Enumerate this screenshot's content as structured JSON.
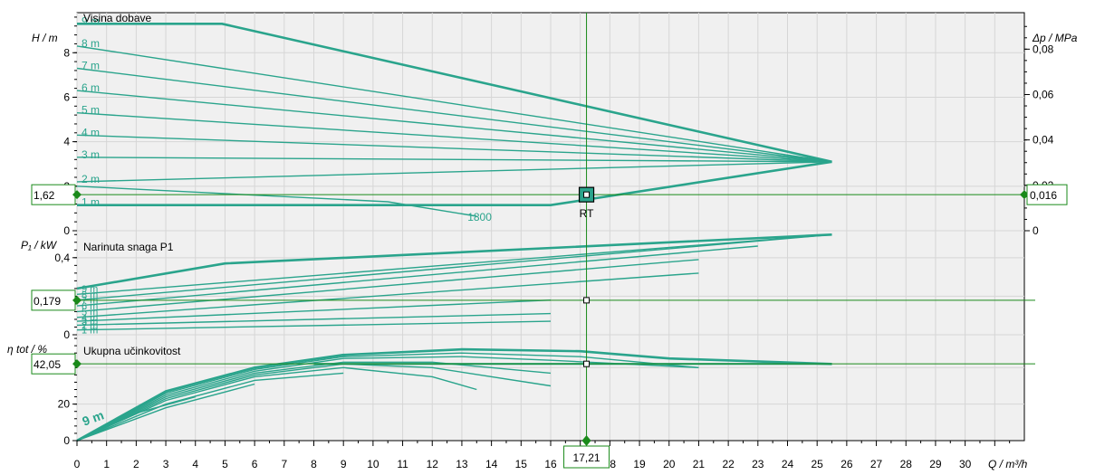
{
  "colors": {
    "curve": "#2aa48c",
    "label": "#2aa48c",
    "marker": "#1a8a1a",
    "grid": "#d6d6d6",
    "panel": "#f0f0f0",
    "axis": "#000000"
  },
  "chart_data": [
    {
      "type": "line",
      "title": "Visina dobave",
      "ylabel": "H / m",
      "ylabel_right": "Δp / MPa",
      "xlim": [
        0,
        32
      ],
      "ylim": [
        0,
        9.8
      ],
      "y_ticks": [
        0,
        2,
        4,
        6,
        8
      ],
      "y_right_ticks": [
        {
          "label": "0",
          "h": 0
        },
        {
          "label": "0,02",
          "h": 2.04
        },
        {
          "label": "0,04",
          "h": 4.08
        },
        {
          "label": "0,06",
          "h": 6.12
        },
        {
          "label": "0,08",
          "h": 8.16
        }
      ],
      "grid": true,
      "series": [
        {
          "name": "9 m",
          "x": [
            0,
            4.9,
            25.5
          ],
          "y": [
            9.3,
            9.3,
            3.1
          ]
        },
        {
          "name": "8 m",
          "x": [
            0,
            25.5
          ],
          "y": [
            8.3,
            3.1
          ]
        },
        {
          "name": "7 m",
          "x": [
            0,
            25.5
          ],
          "y": [
            7.3,
            3.1
          ]
        },
        {
          "name": "6 m",
          "x": [
            0,
            25.5
          ],
          "y": [
            6.3,
            3.1
          ]
        },
        {
          "name": "5 m",
          "x": [
            0,
            25.5
          ],
          "y": [
            5.3,
            3.1
          ]
        },
        {
          "name": "4 m",
          "x": [
            0,
            25.5
          ],
          "y": [
            4.3,
            3.1
          ]
        },
        {
          "name": "3 m",
          "x": [
            0,
            25.5
          ],
          "y": [
            3.3,
            3.1
          ]
        },
        {
          "name": "2 m",
          "x": [
            0,
            25.5
          ],
          "y": [
            2.2,
            3.1
          ]
        },
        {
          "name": "1 m",
          "x": [
            0,
            16,
            25.5
          ],
          "y": [
            1.15,
            1.15,
            3.1
          ]
        },
        {
          "name": "1800",
          "x": [
            0,
            10.5,
            13.5
          ],
          "y": [
            2.0,
            1.3,
            0.65
          ]
        }
      ],
      "operating_point": {
        "label": "RT",
        "x": 17.21,
        "y": 1.62,
        "y_label": "1,62",
        "y_right_label": "0,016"
      }
    },
    {
      "type": "line",
      "title": "Narinuta snaga P1",
      "ylabel": "P₁ / kW",
      "xlim": [
        0,
        32
      ],
      "ylim": [
        0,
        0.54
      ],
      "y_ticks": [
        0,
        0.2,
        0.4
      ],
      "y_tick_labels": [
        "0",
        "",
        "0,4"
      ],
      "grid": true,
      "series": [
        {
          "name": "9 m",
          "x": [
            0,
            5,
            25.5
          ],
          "y": [
            0.24,
            0.37,
            0.52
          ]
        },
        {
          "name": "8 m",
          "x": [
            0,
            25.5
          ],
          "y": [
            0.21,
            0.52
          ]
        },
        {
          "name": "7 m",
          "x": [
            0,
            25.5
          ],
          "y": [
            0.18,
            0.52
          ]
        },
        {
          "name": "6 m",
          "x": [
            0,
            23
          ],
          "y": [
            0.15,
            0.46
          ]
        },
        {
          "name": "5 m",
          "x": [
            0,
            21
          ],
          "y": [
            0.12,
            0.39
          ]
        },
        {
          "name": "4 m",
          "x": [
            0,
            21
          ],
          "y": [
            0.09,
            0.32
          ]
        },
        {
          "name": "3 m",
          "x": [
            0,
            16
          ],
          "y": [
            0.07,
            0.18
          ]
        },
        {
          "name": "2 m",
          "x": [
            0,
            16
          ],
          "y": [
            0.05,
            0.11
          ]
        },
        {
          "name": "1 m",
          "x": [
            0,
            16
          ],
          "y": [
            0.025,
            0.07
          ]
        }
      ],
      "operating_point": {
        "x": 17.21,
        "y": 0.179,
        "y_label": "0,179"
      }
    },
    {
      "type": "line",
      "title": "Ukupna učinkovitost",
      "ylabel": "η tot / %",
      "xlim": [
        0,
        32
      ],
      "ylim": [
        0,
        58
      ],
      "y_ticks": [
        0,
        20,
        40
      ],
      "grid": true,
      "series": [
        {
          "name": "9 m",
          "x": [
            0,
            3,
            6,
            9,
            13,
            17,
            20,
            25.5
          ],
          "y": [
            0,
            27,
            40,
            47,
            50,
            49,
            45,
            42
          ]
        },
        {
          "name": "8 m",
          "x": [
            0,
            3,
            6,
            9,
            13,
            17,
            21
          ],
          "y": [
            0,
            26,
            39,
            46,
            48,
            46,
            40
          ]
        },
        {
          "name": "7 m",
          "x": [
            0,
            3,
            6,
            9,
            13,
            16,
            21
          ],
          "y": [
            0,
            25,
            38,
            45,
            46,
            44,
            40
          ]
        },
        {
          "name": "6 m",
          "x": [
            0,
            3,
            6,
            9,
            12,
            16
          ],
          "y": [
            0,
            24,
            37,
            43,
            43,
            37
          ]
        },
        {
          "name": "5 m",
          "x": [
            0,
            3,
            6,
            9,
            12,
            16
          ],
          "y": [
            0,
            23,
            36,
            42,
            40,
            30
          ]
        },
        {
          "name": "4 m",
          "x": [
            0,
            3,
            6,
            9,
            12,
            13.5
          ],
          "y": [
            0,
            22,
            35,
            40,
            35,
            28
          ]
        },
        {
          "name": "3 m",
          "x": [
            0,
            3,
            6,
            9
          ],
          "y": [
            0,
            20,
            33,
            37
          ]
        },
        {
          "name": "2 m",
          "x": [
            0,
            3,
            6
          ],
          "y": [
            0,
            18,
            31
          ]
        },
        {
          "name": "1 m",
          "x": [
            0,
            2,
            4
          ],
          "y": [
            0,
            15,
            24
          ]
        }
      ],
      "flat_line": {
        "x": [
          8,
          25.5
        ],
        "y": [
          42.05,
          42.05
        ]
      },
      "operating_point": {
        "x": 17.21,
        "y": 42.05,
        "y_label": "42,05"
      }
    }
  ],
  "x_axis": {
    "label": "Q / m³/h",
    "ticks": [
      "0",
      "1",
      "2",
      "3",
      "4",
      "5",
      "6",
      "7",
      "8",
      "9",
      "10",
      "11",
      "12",
      "13",
      "14",
      "15",
      "16",
      "17",
      "18",
      "19",
      "20",
      "21",
      "22",
      "23",
      "24",
      "25",
      "26",
      "27",
      "28",
      "29",
      "30"
    ],
    "operating_x": 17.21,
    "operating_x_label": "17,21"
  },
  "curve_labels": [
    "9 m",
    "8 m",
    "7 m",
    "6 m",
    "5 m",
    "4 m",
    "3 m",
    "2 m",
    "1 m"
  ],
  "power_curve_labels": [
    "9 m",
    "8 m",
    "7 m",
    "6 m",
    "5 m",
    "4 m",
    "3 m",
    "2 m",
    "1 m"
  ],
  "efficiency_curve_label": "9 m"
}
